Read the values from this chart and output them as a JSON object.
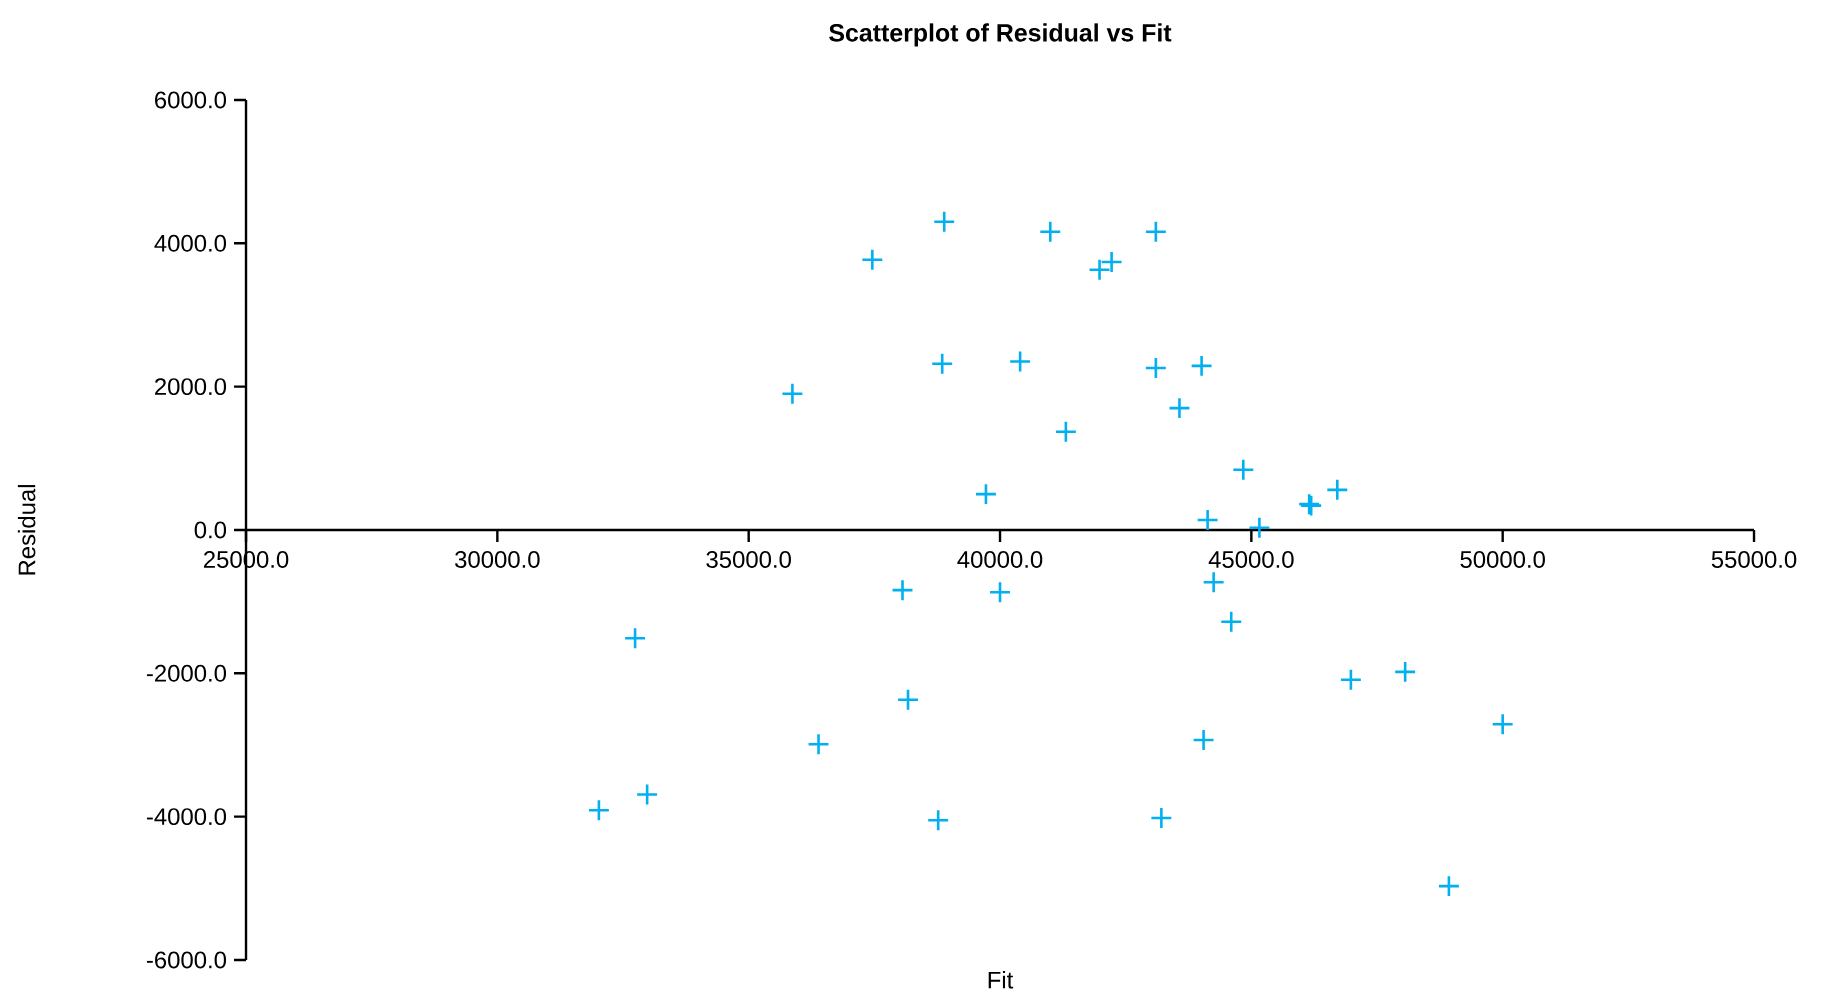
{
  "chart_data": {
    "type": "scatter",
    "title": "Scatterplot of Residual vs Fit",
    "xlabel": "Fit",
    "ylabel": "Residual",
    "x": [
      32020,
      32740,
      32980,
      35870,
      36390,
      37460,
      38060,
      38170,
      38890,
      38850,
      38770,
      39720,
      40000,
      40400,
      41000,
      41310,
      41980,
      42220,
      43100,
      43100,
      43210,
      43570,
      44010,
      44050,
      44130,
      44250,
      44600,
      44840,
      45160,
      46150,
      46190,
      46710,
      46980,
      48060,
      50000,
      48930
    ],
    "series": [
      {
        "color": "#00b0f0",
        "values": [
          -3910,
          -1510,
          -3690,
          1900,
          -2990,
          3770,
          -840,
          -2370,
          4300,
          2320,
          -4050,
          500,
          -870,
          2350,
          4160,
          1370,
          3630,
          3740,
          4160,
          2260,
          -4020,
          1700,
          2290,
          -2930,
          140,
          -730,
          -1280,
          840,
          30,
          360,
          340,
          560,
          -2090,
          -1980,
          -2710,
          -4970
        ]
      }
    ],
    "marker": "cross",
    "grid": false,
    "xlim": [
      25000,
      55000
    ],
    "ylim": [
      -6000,
      6000
    ],
    "xticks": [
      {
        "value": 25000,
        "label": "25000.0"
      },
      {
        "value": 30000,
        "label": "30000.0"
      },
      {
        "value": 35000,
        "label": "35000.0"
      },
      {
        "value": 40000,
        "label": "40000.0"
      },
      {
        "value": 45000,
        "label": "45000.0"
      },
      {
        "value": 50000,
        "label": "50000.0"
      },
      {
        "value": 55000,
        "label": "55000.0"
      }
    ],
    "yticks": [
      {
        "value": -6000,
        "label": "-6000.0"
      },
      {
        "value": -4000,
        "label": "-4000.0"
      },
      {
        "value": -2000,
        "label": "-2000.0"
      },
      {
        "value": 0,
        "label": "0.0"
      },
      {
        "value": 2000,
        "label": "2000.0"
      },
      {
        "value": 4000,
        "label": "4000.0"
      },
      {
        "value": 6000,
        "label": "6000.0"
      }
    ]
  }
}
